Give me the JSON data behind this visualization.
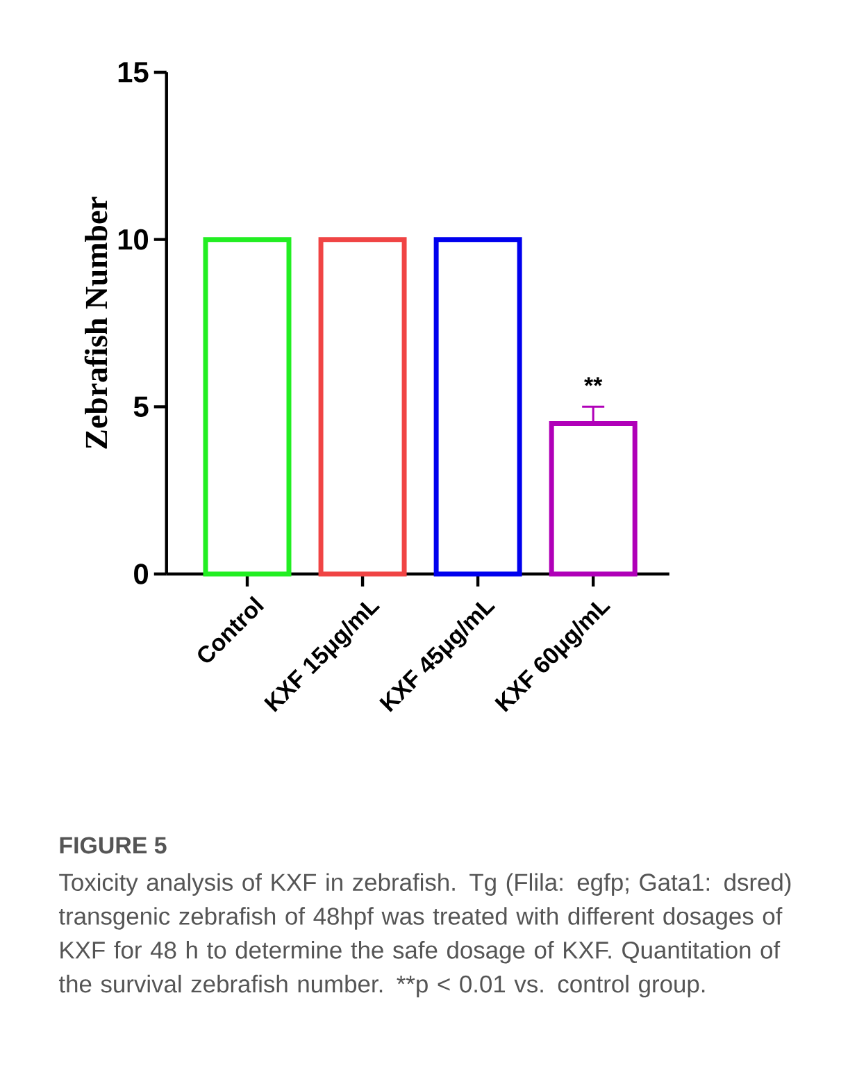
{
  "chart_data": {
    "type": "bar",
    "title": "FIGURE 5",
    "categories": [
      "Control",
      "KXF 15μg/mL",
      "KXF 45μg/mL",
      "KXF 60μg/mL"
    ],
    "values": [
      10,
      10,
      10,
      4.5
    ],
    "colors": [
      "#22ee22",
      "#f04444",
      "#0000ee",
      "#b000b8"
    ],
    "errors": [
      null,
      null,
      null,
      [
        4.5,
        5.0
      ]
    ],
    "ylabel": "Zebrafish Number",
    "ylim": [
      0,
      15
    ],
    "yticks": [
      0,
      5,
      10,
      15
    ],
    "annotations": [
      "**",
      "Toxicity analysis of KXF in zebrafish. Tg (Flila: egfp; Gata1: dsred) transgenic zebrafish of 48hpf was treated with different dosages of KXF for 48 h to determine the safe dosage of KXF. Quantitation of the survival zebrafish number. **p < 0.01 vs. control group."
    ]
  }
}
